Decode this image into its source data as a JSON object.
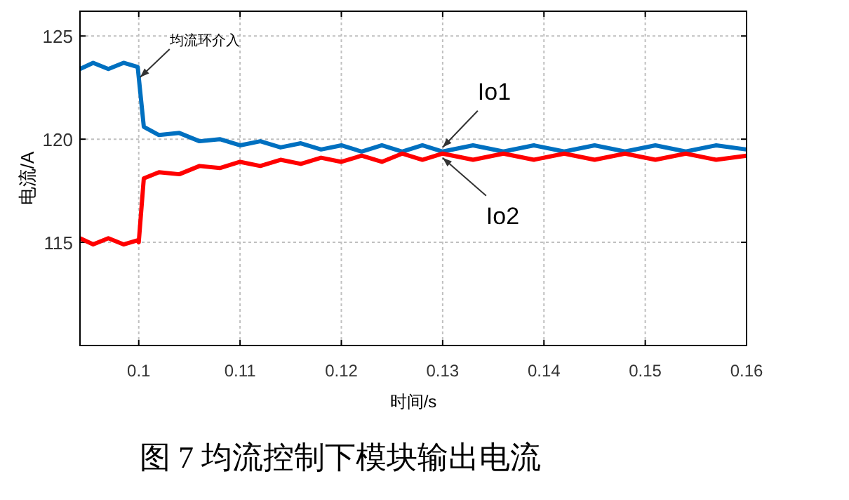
{
  "chart_data": {
    "type": "line",
    "xlabel": "时间/s",
    "ylabel": "电流/A",
    "x": [
      0.0942,
      0.0955,
      0.097,
      0.0985,
      0.0999,
      0.1,
      0.1005,
      0.102,
      0.104,
      0.106,
      0.108,
      0.11,
      0.112,
      0.114,
      0.116,
      0.118,
      0.12,
      0.122,
      0.124,
      0.126,
      0.128,
      0.13,
      0.133,
      0.136,
      0.139,
      0.142,
      0.145,
      0.148,
      0.151,
      0.154,
      0.157,
      0.16
    ],
    "series": [
      {
        "name": "Io1",
        "color": "#0070c0",
        "values": [
          123.4,
          123.7,
          123.4,
          123.7,
          123.5,
          123.0,
          120.6,
          120.2,
          120.3,
          119.9,
          120.0,
          119.7,
          119.9,
          119.6,
          119.8,
          119.5,
          119.7,
          119.4,
          119.7,
          119.4,
          119.7,
          119.4,
          119.7,
          119.4,
          119.7,
          119.4,
          119.7,
          119.4,
          119.7,
          119.4,
          119.7,
          119.5
        ]
      },
      {
        "name": "Io2",
        "color": "#ff0000",
        "values": [
          115.2,
          114.9,
          115.2,
          114.9,
          115.1,
          115.0,
          118.1,
          118.4,
          118.3,
          118.7,
          118.6,
          118.9,
          118.7,
          119.0,
          118.8,
          119.1,
          118.9,
          119.2,
          118.9,
          119.3,
          119.0,
          119.3,
          119.0,
          119.3,
          119.0,
          119.3,
          119.0,
          119.3,
          119.0,
          119.3,
          119.0,
          119.2
        ]
      }
    ],
    "xlim": [
      0.0942,
      0.16
    ],
    "ylim": [
      110,
      126.2
    ],
    "xticks": [
      0.1,
      0.11,
      0.12,
      0.13,
      0.14,
      0.15,
      0.16
    ],
    "yticks": [
      115,
      120,
      125
    ],
    "grid": true,
    "marker": "none",
    "line_style": "solid",
    "annotations": [
      {
        "text": "均流环介入",
        "x": 0.1,
        "y": 123
      },
      "图 7  均流控制下模块输出电流"
    ]
  }
}
